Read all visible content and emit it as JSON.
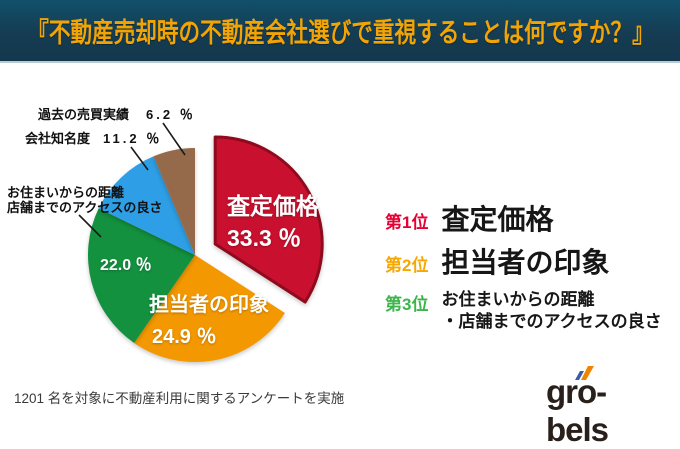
{
  "header": {
    "title": "『不動産売却時の不動産会社選びで重視することは何ですか？』",
    "bg_top": "#11506b",
    "bg_bottom": "#15394e",
    "title_color": "#F2A405"
  },
  "chart_data": {
    "type": "pie",
    "direction": "clockwise",
    "start_angle_deg": 0,
    "unit": "％",
    "slices": [
      {
        "label": "査定価格",
        "value": 33.3,
        "pct_text": "33.3 ％",
        "color": "#C9102E",
        "border": "#8E0A1E",
        "exploded": true
      },
      {
        "label": "担当者の印象",
        "value": 24.9,
        "pct_text": "24.9 ％",
        "color": "#F39800",
        "exploded": false
      },
      {
        "label_line1": "お住まいからの距離",
        "label_line2": "店舗までのアクセスの良さ",
        "value": 22.0,
        "pct_text": "22.0 ％",
        "color": "#13913F",
        "exploded": false
      },
      {
        "label": "会社知名度",
        "value": 11.2,
        "pct_text": "11.2 ％",
        "color": "#2E9FE6",
        "exploded": false
      },
      {
        "label": "過去の売買実績",
        "value": 6.2,
        "pct_text": "6.2 ％",
        "color": "#956A4B",
        "exploded": false
      }
    ]
  },
  "ranking": {
    "items": [
      {
        "rank_label": "第1位",
        "color": "#E60033",
        "text": "査定価格"
      },
      {
        "rank_label": "第2位",
        "color": "#F7A800",
        "text": "担当者の印象"
      },
      {
        "rank_label": "第3位",
        "color": "#3CB54A",
        "text_line1": "お住まいからの距離",
        "text_line2": "・店舗までのアクセスの良さ"
      }
    ]
  },
  "footer": {
    "note": "1201 名を対象に不動産利用に関するアンケートを実施"
  },
  "logo": {
    "text": "gro-bels",
    "text_color": "#2A201B",
    "accent_blue": "#3A5BA8",
    "accent_orange": "#F08300"
  }
}
